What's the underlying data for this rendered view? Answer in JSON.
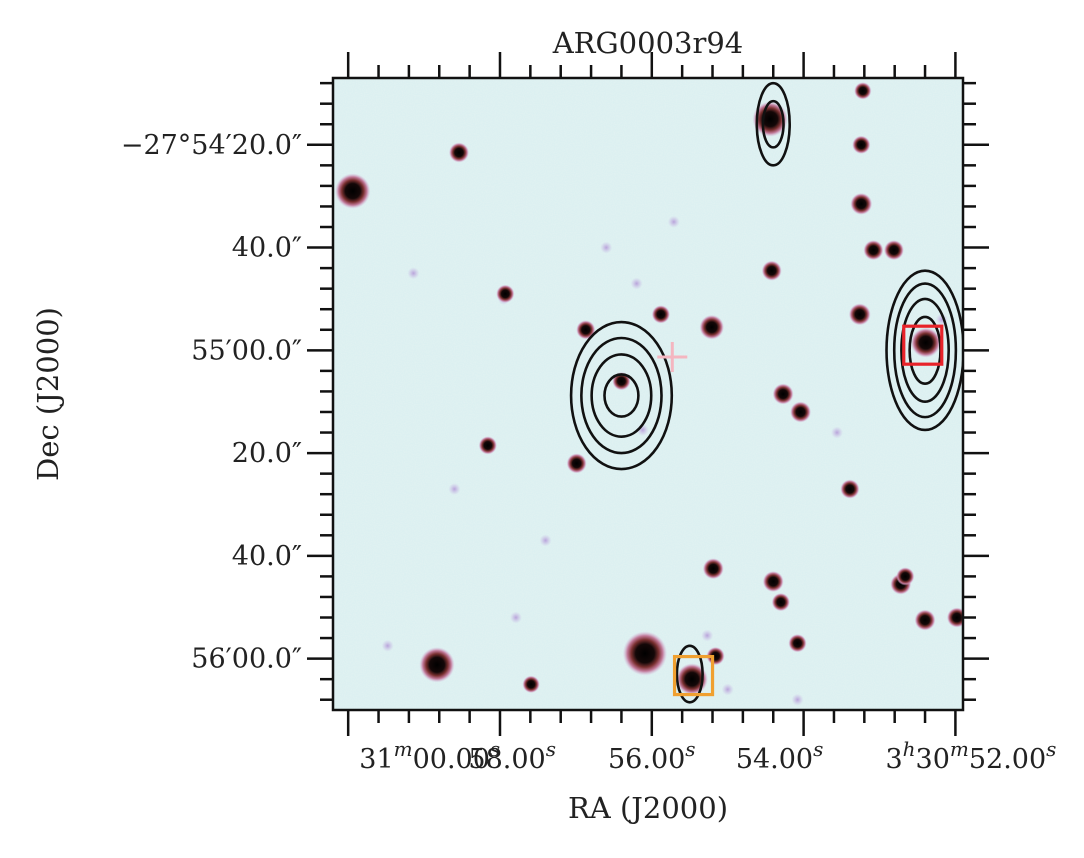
{
  "chart_data": {
    "type": "image",
    "title": "ARG0003r94",
    "xlabel": "RA (J2000)",
    "ylabel": "Dec (J2000)",
    "x_tick_labels": [
      {
        "main": "31",
        "sup": "m",
        "tail": "00.00",
        "sup2": "s"
      },
      {
        "main": "58.00",
        "sup": "s"
      },
      {
        "main": "56.00",
        "sup": "s"
      },
      {
        "main": "54.00",
        "sup": "s"
      },
      {
        "main": "3",
        "sup": "h",
        "tail": "30",
        "sup2": "m",
        "tail2": "52.00",
        "sup3": "s"
      }
    ],
    "x_tick_ra_seconds": [
      60.0,
      58.0,
      56.0,
      54.0,
      52.0
    ],
    "y_tick_labels": [
      "−27°54′20.0″",
      "40.0″",
      "55′00.0″",
      "20.0″",
      "40.0″",
      "56′00.0″"
    ],
    "y_tick_dec_arcsec": [
      20,
      40,
      60,
      80,
      100,
      120
    ],
    "xlim_ra_seconds": [
      60.2,
      51.9
    ],
    "ylim_dec_arcsec": [
      7,
      130
    ],
    "background_color": "#e3f2f2",
    "contour_color": "#111111",
    "markers": [
      {
        "name": "optical counterpart",
        "shape": "square",
        "color": "#e8232a",
        "ra_s": 52.43,
        "dec_arcsec": 59.0
      },
      {
        "name": "optical counterpart 2",
        "shape": "square",
        "color": "#f0a030",
        "ra_s": 55.45,
        "dec_arcsec": 123.3
      },
      {
        "name": "radio position",
        "shape": "cross",
        "color": "#f4b6c0",
        "ra_s": 55.73,
        "dec_arcsec": 61.3
      }
    ],
    "contour_groups": [
      {
        "ra_s": 56.4,
        "dec_arcsec": 68.8,
        "rx_arcsec": [
          3.3,
          5.8,
          7.8,
          9.8
        ],
        "ry_arcsec": [
          4.1,
          8.0,
          11.2,
          14.3
        ]
      },
      {
        "ra_s": 52.4,
        "dec_arcsec": 60.0,
        "rx_arcsec": [
          3.0,
          4.6,
          6.0,
          7.5
        ],
        "ry_arcsec": [
          6.5,
          10.0,
          13.0,
          15.5
        ]
      },
      {
        "ra_s": 54.4,
        "dec_arcsec": 16.0,
        "rx_arcsec": [
          2.0,
          3.2
        ],
        "ry_arcsec": [
          4.5,
          8.0
        ]
      },
      {
        "ra_s": 55.5,
        "dec_arcsec": 123.0,
        "rx_arcsec": [
          2.5
        ],
        "ry_arcsec": [
          5.5
        ]
      }
    ],
    "sources": [
      {
        "ra_s": 52.39,
        "dec_arcsec": 58.5,
        "r": 1.0
      },
      {
        "ra_s": 54.44,
        "dec_arcsec": 15.0,
        "r": 1.3
      },
      {
        "ra_s": 59.94,
        "dec_arcsec": 29.0,
        "r": 1.3
      },
      {
        "ra_s": 58.83,
        "dec_arcsec": 121.2,
        "r": 1.3
      },
      {
        "ra_s": 56.09,
        "dec_arcsec": 119.0,
        "r": 1.8
      },
      {
        "ra_s": 55.47,
        "dec_arcsec": 124.0,
        "r": 1.1
      },
      {
        "ra_s": 55.21,
        "dec_arcsec": 55.5,
        "r": 0.7
      },
      {
        "ra_s": 53.24,
        "dec_arcsec": 31.5,
        "r": 0.55
      },
      {
        "ra_s": 53.26,
        "dec_arcsec": 53.0,
        "r": 0.55
      },
      {
        "ra_s": 54.04,
        "dec_arcsec": 72.0,
        "r": 0.5
      },
      {
        "ra_s": 54.27,
        "dec_arcsec": 68.5,
        "r": 0.5
      },
      {
        "ra_s": 56.99,
        "dec_arcsec": 82.0,
        "r": 0.45
      },
      {
        "ra_s": 55.19,
        "dec_arcsec": 102.5,
        "r": 0.5
      },
      {
        "ra_s": 54.4,
        "dec_arcsec": 105.0,
        "r": 0.5
      },
      {
        "ra_s": 52.4,
        "dec_arcsec": 112.5,
        "r": 0.5
      },
      {
        "ra_s": 52.72,
        "dec_arcsec": 105.5,
        "r": 0.5
      },
      {
        "ra_s": 51.98,
        "dec_arcsec": 112.0,
        "r": 0.45
      },
      {
        "ra_s": 54.42,
        "dec_arcsec": 44.5,
        "r": 0.45
      },
      {
        "ra_s": 58.54,
        "dec_arcsec": 21.5,
        "r": 0.45
      },
      {
        "ra_s": 53.08,
        "dec_arcsec": 40.5,
        "r": 0.45
      },
      {
        "ra_s": 52.81,
        "dec_arcsec": 40.5,
        "r": 0.45
      },
      {
        "ra_s": 56.87,
        "dec_arcsec": 56.0,
        "r": 0.4
      },
      {
        "ra_s": 53.39,
        "dec_arcsec": 87.0,
        "r": 0.4
      },
      {
        "ra_s": 57.93,
        "dec_arcsec": 49.0,
        "r": 0.35
      },
      {
        "ra_s": 58.16,
        "dec_arcsec": 78.5,
        "r": 0.35
      },
      {
        "ra_s": 55.88,
        "dec_arcsec": 53.0,
        "r": 0.35
      },
      {
        "ra_s": 54.3,
        "dec_arcsec": 109.0,
        "r": 0.35
      },
      {
        "ra_s": 54.08,
        "dec_arcsec": 117.0,
        "r": 0.35
      },
      {
        "ra_s": 55.16,
        "dec_arcsec": 119.5,
        "r": 0.35
      },
      {
        "ra_s": 53.24,
        "dec_arcsec": 20.0,
        "r": 0.35
      },
      {
        "ra_s": 53.22,
        "dec_arcsec": 9.5,
        "r": 0.3
      },
      {
        "ra_s": 52.66,
        "dec_arcsec": 104.0,
        "r": 0.35
      },
      {
        "ra_s": 56.4,
        "dec_arcsec": 66.0,
        "r": 0.35
      },
      {
        "ra_s": 57.59,
        "dec_arcsec": 125.0,
        "r": 0.3
      }
    ],
    "faint_sources": [
      {
        "ra_s": 57.95,
        "dec_arcsec": 50.0
      },
      {
        "ra_s": 59.14,
        "dec_arcsec": 45.0
      },
      {
        "ra_s": 57.79,
        "dec_arcsec": 112.0
      },
      {
        "ra_s": 59.48,
        "dec_arcsec": 117.5
      },
      {
        "ra_s": 56.12,
        "dec_arcsec": 75.5
      },
      {
        "ra_s": 55.27,
        "dec_arcsec": 115.5
      },
      {
        "ra_s": 56.2,
        "dec_arcsec": 47.0
      },
      {
        "ra_s": 55.0,
        "dec_arcsec": 126.0
      },
      {
        "ra_s": 54.08,
        "dec_arcsec": 128.0
      },
      {
        "ra_s": 52.18,
        "dec_arcsec": 54.0
      },
      {
        "ra_s": 53.56,
        "dec_arcsec": 76.0
      },
      {
        "ra_s": 55.71,
        "dec_arcsec": 35.0
      },
      {
        "ra_s": 56.6,
        "dec_arcsec": 40.0
      },
      {
        "ra_s": 58.6,
        "dec_arcsec": 87.0
      },
      {
        "ra_s": 57.4,
        "dec_arcsec": 97.0
      }
    ]
  }
}
